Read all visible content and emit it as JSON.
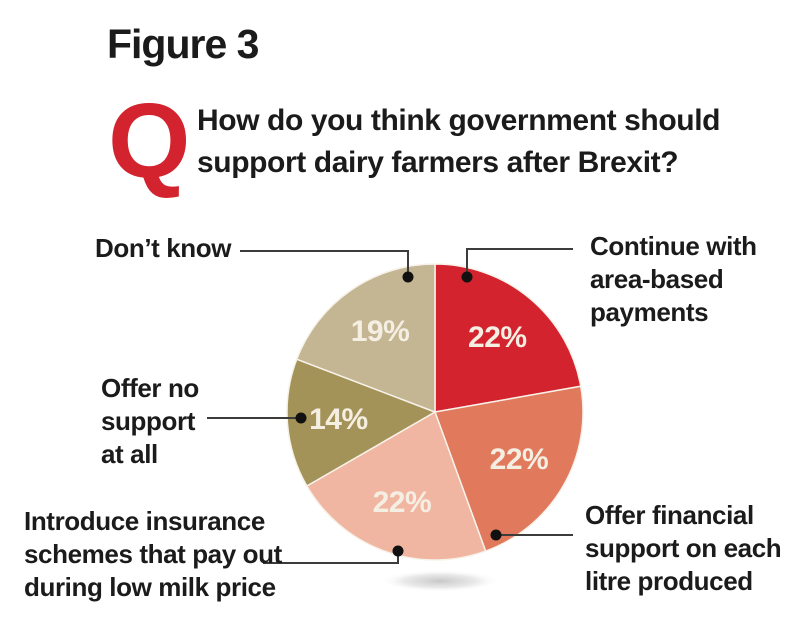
{
  "figure_label": "Figure 3",
  "question": {
    "q_mark": "Q",
    "text": "How do you think government should\nsupport dairy farmers after Brexit?"
  },
  "colors": {
    "accent_red": "#d2232e",
    "text_black": "#1b1b1b",
    "leader_line": "#3c3c3b",
    "leader_dot": "#111111",
    "percent_text": "#f5efe3",
    "slice_stroke": "#f7f2e9",
    "background": "#ffffff"
  },
  "chart_data": {
    "type": "pie",
    "title": "How do you think government should support dairy farmers after Brexit?",
    "figure": "Figure 3",
    "direction": "clockwise",
    "start_angle_deg_from_12oclock": 0,
    "legend_position": "callout-labels-with-leader-lines",
    "categories": [
      "Continue with area-based payments",
      "Offer financial support on each litre produced",
      "Introduce insurance schemes that pay out during low milk price",
      "Offer no support at all",
      "Don’t know"
    ],
    "values": [
      22,
      22,
      22,
      14,
      19
    ],
    "slices": [
      {
        "label": "Continue with\narea-based\npayments",
        "value": 22,
        "percent_label": "22%",
        "color": "#d2232e"
      },
      {
        "label": "Offer financial\nsupport on each\nlitre produced",
        "value": 22,
        "percent_label": "22%",
        "color": "#e1795c"
      },
      {
        "label": "Introduce insurance\nschemes that pay out\nduring low milk price",
        "value": 22,
        "percent_label": "22%",
        "color": "#f1b6a2"
      },
      {
        "label": "Offer no\nsupport\nat all",
        "value": 14,
        "percent_label": "14%",
        "color": "#a49358"
      },
      {
        "label": "Don’t know",
        "value": 19,
        "percent_label": "19%",
        "color": "#c4b593"
      }
    ]
  }
}
